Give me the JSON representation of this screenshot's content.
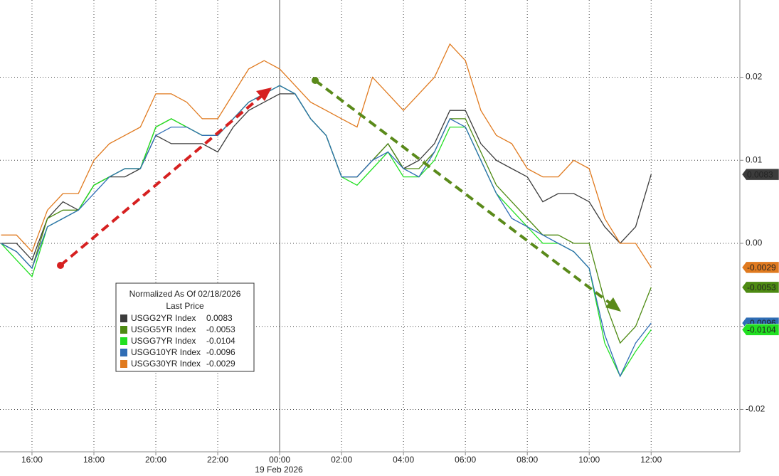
{
  "chart_data": {
    "type": "line",
    "xlabel": "19 Feb 2026",
    "legend_title": "Normalized As Of 02/18/2026",
    "legend_subtitle": "Last Price",
    "x": [
      "15:00",
      "15:30",
      "16:00",
      "16:30",
      "17:00",
      "17:30",
      "18:00",
      "18:30",
      "19:00",
      "19:30",
      "20:00",
      "20:30",
      "21:00",
      "21:30",
      "22:00",
      "22:30",
      "23:00",
      "23:30",
      "00:00",
      "00:30",
      "01:00",
      "01:30",
      "02:00",
      "02:30",
      "03:00",
      "03:30",
      "04:00",
      "04:30",
      "05:00",
      "05:30",
      "06:00",
      "06:30",
      "07:00",
      "07:30",
      "08:00",
      "08:30",
      "09:00",
      "09:30",
      "10:00",
      "10:30",
      "11:00",
      "11:30",
      "12:00"
    ],
    "xlim": [
      "14:58",
      "14:52"
    ],
    "xticks": [
      "16:00",
      "18:00",
      "20:00",
      "22:00",
      "00:00",
      "02:00",
      "04:00",
      "06:00",
      "08:00",
      "10:00",
      "12:00"
    ],
    "ylim": [
      -0.0251,
      0.0293
    ],
    "yticks": [
      0.02,
      0.01,
      {
        "value": 0,
        "label": "0.00"
      },
      -0.01,
      -0.02
    ],
    "grid": true,
    "series": [
      {
        "name": "USGG2YR Index",
        "color": "#3c3c3c",
        "tag_text": "#ffffff",
        "values": [
          0,
          0,
          -0.002,
          0.003,
          0.005,
          0.004,
          0.007,
          0.008,
          0.008,
          0.009,
          0.013,
          0.012,
          0.012,
          0.012,
          0.011,
          0.014,
          0.016,
          0.017,
          0.018,
          0.018,
          0.015,
          0.013,
          0.008,
          0.008,
          0.01,
          0.012,
          0.009,
          0.01,
          0.012,
          0.016,
          0.016,
          0.012,
          0.01,
          0.009,
          0.008,
          0.005,
          0.006,
          0.006,
          0.005,
          0.002,
          0.0,
          0.002,
          0.0083
        ]
      },
      {
        "name": "USGG5YR Index",
        "color": "#4d8a12",
        "tag_text": "#ffffff",
        "values": [
          0,
          -0.001,
          -0.003,
          0.003,
          0.004,
          0.004,
          0.007,
          0.008,
          0.009,
          0.009,
          0.014,
          0.015,
          0.014,
          0.013,
          0.013,
          0.015,
          0.017,
          0.018,
          0.019,
          0.018,
          0.015,
          0.013,
          0.008,
          0.008,
          0.01,
          0.012,
          0.009,
          0.009,
          0.011,
          0.015,
          0.015,
          0.011,
          0.007,
          0.005,
          0.003,
          0.001,
          0.001,
          0.0,
          0.0,
          -0.007,
          -0.012,
          -0.01,
          -0.0053
        ]
      },
      {
        "name": "USGG7YR Index",
        "color": "#22e022",
        "tag_text": "#000000",
        "values": [
          0,
          -0.002,
          -0.004,
          0.002,
          0.003,
          0.004,
          0.007,
          0.008,
          0.009,
          0.009,
          0.014,
          0.015,
          0.014,
          0.013,
          0.013,
          0.015,
          0.017,
          0.018,
          0.019,
          0.018,
          0.015,
          0.013,
          0.008,
          0.007,
          0.009,
          0.011,
          0.008,
          0.008,
          0.01,
          0.014,
          0.014,
          0.01,
          0.006,
          0.004,
          0.002,
          0.0,
          0.0,
          -0.001,
          -0.003,
          -0.012,
          -0.016,
          -0.013,
          -0.0104
        ]
      },
      {
        "name": "USGG10YR Index",
        "color": "#2f6db5",
        "tag_text": "#ffffff",
        "values": [
          0,
          -0.001,
          -0.003,
          0.002,
          0.003,
          0.004,
          0.006,
          0.008,
          0.009,
          0.009,
          0.013,
          0.014,
          0.014,
          0.013,
          0.013,
          0.015,
          0.017,
          0.018,
          0.019,
          0.018,
          0.015,
          0.013,
          0.008,
          0.008,
          0.01,
          0.011,
          0.009,
          0.008,
          0.011,
          0.015,
          0.014,
          0.01,
          0.006,
          0.003,
          0.002,
          0.001,
          0.0,
          -0.001,
          -0.003,
          -0.011,
          -0.016,
          -0.012,
          -0.0096
        ]
      },
      {
        "name": "USGG30YR Index",
        "color": "#e07a1f",
        "tag_text": "#000000",
        "values": [
          0.001,
          0.001,
          -0.001,
          0.004,
          0.006,
          0.006,
          0.01,
          0.012,
          0.013,
          0.014,
          0.018,
          0.018,
          0.017,
          0.015,
          0.015,
          0.018,
          0.021,
          0.022,
          0.021,
          0.019,
          0.017,
          0.016,
          0.015,
          0.014,
          0.02,
          0.018,
          0.016,
          0.018,
          0.02,
          0.024,
          0.022,
          0.016,
          0.013,
          0.012,
          0.009,
          0.008,
          0.008,
          0.01,
          0.009,
          0.003,
          0.0,
          0.0,
          -0.0029
        ]
      }
    ]
  }
}
